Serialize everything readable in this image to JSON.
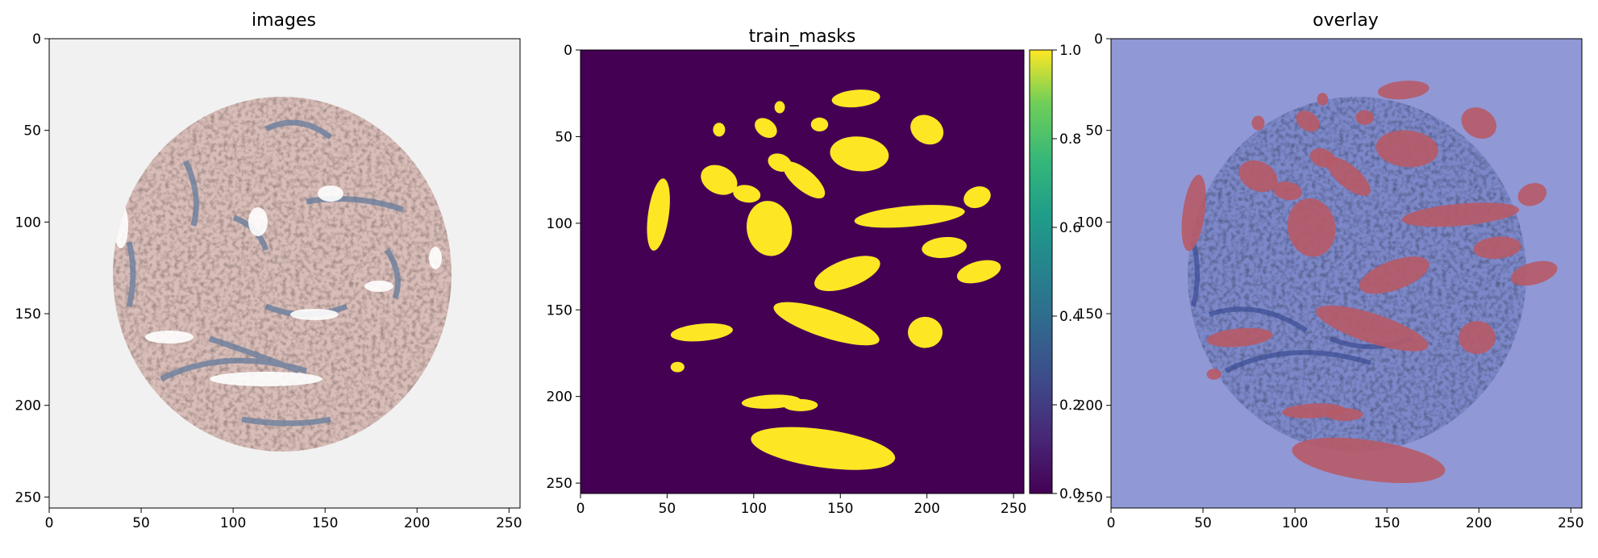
{
  "chart_data": [
    {
      "type": "image",
      "title": "images",
      "x_ticks": [
        0,
        50,
        100,
        150,
        200,
        250
      ],
      "y_ticks": [
        0,
        50,
        100,
        150,
        200,
        250
      ],
      "xlim": [
        0,
        256
      ],
      "ylim": [
        256,
        0
      ],
      "content": "histology-tissue-core",
      "colors": {
        "background": "#f1f1f1",
        "tissue": "#d9bdb8",
        "stain": "#6b7f9e"
      }
    },
    {
      "type": "heatmap",
      "title": "train_masks",
      "x_ticks": [
        0,
        50,
        100,
        150,
        200,
        250
      ],
      "y_ticks": [
        0,
        50,
        100,
        150,
        200,
        250
      ],
      "xlim": [
        0,
        256
      ],
      "ylim": [
        256,
        0
      ],
      "colormap": "viridis",
      "colorbar": {
        "range": [
          0.0,
          1.0
        ],
        "ticks": [
          "0.0",
          "0.2",
          "0.4",
          "0.6",
          "0.8",
          "1.0"
        ]
      },
      "colors": {
        "low": "#440154",
        "high": "#fde725"
      },
      "mask_regions": [
        {
          "cx": 159,
          "cy": 28,
          "rx": 14,
          "ry": 5,
          "rot": -5
        },
        {
          "cx": 80,
          "cy": 46,
          "rx": 3.5,
          "ry": 4,
          "rot": 0
        },
        {
          "cx": 107,
          "cy": 45,
          "rx": 7,
          "ry": 5,
          "rot": 35
        },
        {
          "cx": 115,
          "cy": 33,
          "rx": 3,
          "ry": 3.5,
          "rot": 0
        },
        {
          "cx": 138,
          "cy": 43,
          "rx": 5,
          "ry": 4,
          "rot": 0
        },
        {
          "cx": 161,
          "cy": 60,
          "rx": 17,
          "ry": 10,
          "rot": 5
        },
        {
          "cx": 200,
          "cy": 46,
          "rx": 10,
          "ry": 8,
          "rot": 30
        },
        {
          "cx": 45,
          "cy": 95,
          "rx": 6,
          "ry": 21,
          "rot": 8
        },
        {
          "cx": 80,
          "cy": 75,
          "rx": 11,
          "ry": 8,
          "rot": 25
        },
        {
          "cx": 96,
          "cy": 83,
          "rx": 8,
          "ry": 5,
          "rot": 10
        },
        {
          "cx": 129,
          "cy": 75,
          "rx": 15,
          "ry": 6,
          "rot": 40
        },
        {
          "cx": 115,
          "cy": 65,
          "rx": 7,
          "ry": 5,
          "rot": 20
        },
        {
          "cx": 109,
          "cy": 103,
          "rx": 13,
          "ry": 16,
          "rot": -10
        },
        {
          "cx": 190,
          "cy": 96,
          "rx": 32,
          "ry": 6,
          "rot": -5
        },
        {
          "cx": 229,
          "cy": 85,
          "rx": 8,
          "ry": 6,
          "rot": -20
        },
        {
          "cx": 210,
          "cy": 114,
          "rx": 13,
          "ry": 6,
          "rot": -5
        },
        {
          "cx": 230,
          "cy": 128,
          "rx": 13,
          "ry": 6,
          "rot": -15
        },
        {
          "cx": 154,
          "cy": 129,
          "rx": 20,
          "ry": 8,
          "rot": -20
        },
        {
          "cx": 142,
          "cy": 158,
          "rx": 32,
          "ry": 8,
          "rot": 18
        },
        {
          "cx": 199,
          "cy": 163,
          "rx": 10,
          "ry": 9,
          "rot": 0
        },
        {
          "cx": 70,
          "cy": 163,
          "rx": 18,
          "ry": 5,
          "rot": -5
        },
        {
          "cx": 56,
          "cy": 183,
          "rx": 4,
          "ry": 3,
          "rot": 0
        },
        {
          "cx": 110,
          "cy": 203,
          "rx": 17,
          "ry": 4,
          "rot": -3
        },
        {
          "cx": 127,
          "cy": 205,
          "rx": 10,
          "ry": 3.5,
          "rot": 0
        },
        {
          "cx": 140,
          "cy": 230,
          "rx": 42,
          "ry": 11,
          "rot": 8
        }
      ]
    },
    {
      "type": "image",
      "title": "overlay",
      "x_ticks": [
        0,
        50,
        100,
        150,
        200,
        250
      ],
      "y_ticks": [
        0,
        50,
        100,
        150,
        200,
        250
      ],
      "xlim": [
        0,
        256
      ],
      "ylim": [
        256,
        0
      ],
      "content": "tissue-with-mask-overlay",
      "colors": {
        "background": "#9198d6",
        "tissue": "#7c88c9",
        "stain": "#3b4c94",
        "mask": "#b75a67"
      }
    }
  ]
}
